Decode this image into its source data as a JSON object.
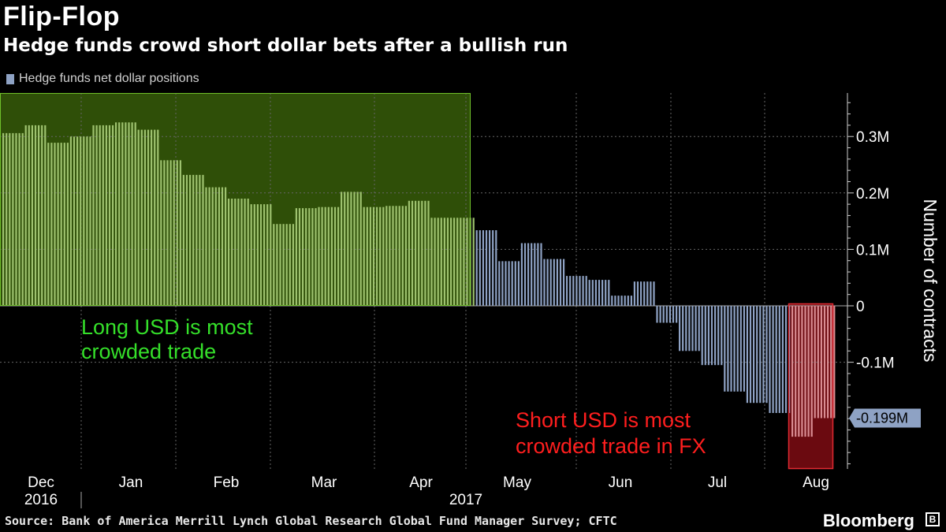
{
  "header": {
    "title": "Flip-Flop",
    "subtitle": "Hedge funds crowd short dollar bets after a bullish run"
  },
  "legend": {
    "label": "Hedge funds net dollar positions"
  },
  "footer": {
    "source": "Source: Bank of America Merrill Lynch Global Research Global Fund Manager Survey; CFTC",
    "brand": "Bloomberg",
    "brand_icon": "B"
  },
  "colors": {
    "background": "#000000",
    "bars": "#8ea2c4",
    "long_zone": "#2f4f08",
    "long_bars": "#9ec26f",
    "long_border": "#6fbf2a",
    "short_zone": "#6b0a10",
    "short_bars": "#d98c92",
    "short_border": "#e02a32",
    "long_annotation": "#35e02a",
    "short_annotation": "#ff1e1e",
    "grid": "#666666",
    "latest_label_bg": "#8ea2c4"
  },
  "chart_data": {
    "type": "bar",
    "title": "Flip-Flop",
    "subtitle": "Hedge funds crowd short dollar bets after a bullish run",
    "ylabel": "Number of contracts",
    "ylim": [
      -0.29,
      0.38
    ],
    "yticks": [
      {
        "value": 0.3,
        "label": "0.3M"
      },
      {
        "value": 0.2,
        "label": "0.2M"
      },
      {
        "value": 0.1,
        "label": "0.1M"
      },
      {
        "value": 0,
        "label": "0"
      },
      {
        "value": -0.1,
        "label": "-0.1M"
      }
    ],
    "latest_label": "-0.199M",
    "x_month_labels": [
      "Dec",
      "Jan",
      "Feb",
      "Mar",
      "Apr",
      "May",
      "Jun",
      "Jul",
      "Aug"
    ],
    "x_year_labels": [
      "2016",
      "2017"
    ],
    "series": [
      {
        "name": "Hedge funds net dollar positions",
        "unit": "million contracts",
        "weekly_values": [
          0.306,
          0.32,
          0.289,
          0.3,
          0.32,
          0.325,
          0.312,
          0.258,
          0.232,
          0.21,
          0.19,
          0.18,
          0.145,
          0.173,
          0.175,
          0.202,
          0.175,
          0.177,
          0.186,
          0.156,
          0.156,
          0.134,
          0.079,
          0.111,
          0.083,
          0.053,
          0.046,
          0.018,
          0.043,
          -0.03,
          -0.08,
          -0.105,
          -0.152,
          -0.172,
          -0.19,
          -0.232,
          -0.199
        ]
      }
    ],
    "annotations": [
      {
        "text_lines": [
          "Long USD is most",
          "crowded trade"
        ]
      },
      {
        "text_lines": [
          "Short USD is most",
          "crowded trade in FX"
        ]
      }
    ]
  }
}
